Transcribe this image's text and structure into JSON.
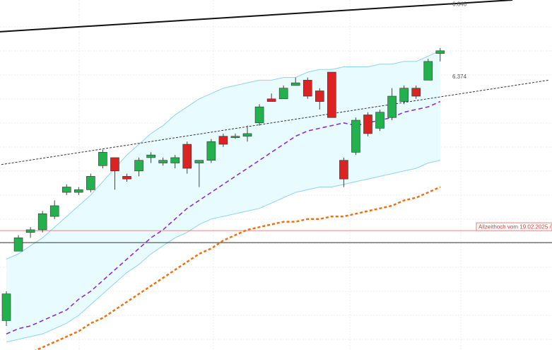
{
  "chart_data": {
    "type": "candlestick",
    "ylim": [
      5.35,
      6.66
    ],
    "grid": true,
    "colors": {
      "up": "#22b14c",
      "down": "#dd2222",
      "band_fill": "#e8fbff",
      "band_line": "#8fd3ef",
      "ma_short": "#8a2be2",
      "ma_long": "#f07010",
      "trend_upper": "#111111",
      "trend_lower": "#333333",
      "ath_line": "#e06060",
      "ref_line": "#333333"
    },
    "candles": [
      {
        "o": 5.46,
        "h": 5.57,
        "l": 5.44,
        "c": 5.56
      },
      {
        "o": 5.72,
        "h": 5.78,
        "l": 5.73,
        "c": 5.77
      },
      {
        "o": 5.79,
        "h": 5.81,
        "l": 5.77,
        "c": 5.8
      },
      {
        "o": 5.8,
        "h": 5.87,
        "l": 5.79,
        "c": 5.86
      },
      {
        "o": 5.85,
        "h": 5.91,
        "l": 5.84,
        "c": 5.89
      },
      {
        "o": 5.94,
        "h": 5.97,
        "l": 5.93,
        "c": 5.96
      },
      {
        "o": 5.94,
        "h": 5.96,
        "l": 5.93,
        "c": 5.95
      },
      {
        "o": 5.95,
        "h": 6.01,
        "l": 5.94,
        "c": 6.0
      },
      {
        "o": 6.04,
        "h": 6.1,
        "l": 6.03,
        "c": 6.09
      },
      {
        "o": 6.07,
        "h": 6.07,
        "l": 5.95,
        "c": 6.02
      },
      {
        "o": 6.0,
        "h": 6.01,
        "l": 5.98,
        "c": 5.99
      },
      {
        "o": 6.02,
        "h": 6.07,
        "l": 6.0,
        "c": 6.06
      },
      {
        "o": 6.07,
        "h": 6.09,
        "l": 6.05,
        "c": 6.08
      },
      {
        "o": 6.05,
        "h": 6.07,
        "l": 6.04,
        "c": 6.06
      },
      {
        "o": 6.05,
        "h": 6.08,
        "l": 6.03,
        "c": 6.07
      },
      {
        "o": 6.12,
        "h": 6.13,
        "l": 6.01,
        "c": 6.03
      },
      {
        "o": 6.05,
        "h": 6.06,
        "l": 5.96,
        "c": 6.06
      },
      {
        "o": 6.06,
        "h": 6.14,
        "l": 6.05,
        "c": 6.13
      },
      {
        "o": 6.15,
        "h": 6.16,
        "l": 6.11,
        "c": 6.12
      },
      {
        "o": 6.15,
        "h": 6.16,
        "l": 6.14,
        "c": 6.15
      },
      {
        "o": 6.15,
        "h": 6.19,
        "l": 6.13,
        "c": 6.16
      },
      {
        "o": 6.2,
        "h": 6.27,
        "l": 6.19,
        "c": 6.26
      },
      {
        "o": 6.29,
        "h": 6.31,
        "l": 6.28,
        "c": 6.28
      },
      {
        "o": 6.29,
        "h": 6.34,
        "l": 6.29,
        "c": 6.33
      },
      {
        "o": 6.34,
        "h": 6.37,
        "l": 6.34,
        "c": 6.35
      },
      {
        "o": 6.36,
        "h": 6.37,
        "l": 6.29,
        "c": 6.3
      },
      {
        "o": 6.32,
        "h": 6.33,
        "l": 6.25,
        "c": 6.28
      },
      {
        "o": 6.39,
        "h": 6.39,
        "l": 6.22,
        "c": 6.22
      },
      {
        "o": 6.06,
        "h": 6.07,
        "l": 5.96,
        "c": 5.99
      },
      {
        "o": 6.09,
        "h": 6.22,
        "l": 6.08,
        "c": 6.21
      },
      {
        "o": 6.23,
        "h": 6.24,
        "l": 6.15,
        "c": 6.16
      },
      {
        "o": 6.18,
        "h": 6.25,
        "l": 6.17,
        "c": 6.24
      },
      {
        "o": 6.22,
        "h": 6.33,
        "l": 6.21,
        "c": 6.3
      },
      {
        "o": 6.28,
        "h": 6.34,
        "l": 6.27,
        "c": 6.33
      },
      {
        "o": 6.33,
        "h": 6.34,
        "l": 6.29,
        "c": 6.3
      },
      {
        "o": 6.36,
        "h": 6.44,
        "l": 6.36,
        "c": 6.43
      },
      {
        "o": 6.46,
        "h": 6.48,
        "l": 6.43,
        "c": 6.47
      }
    ],
    "ma_short": [
      5.41,
      5.43,
      5.44,
      5.46,
      5.48,
      5.5,
      5.54,
      5.57,
      5.61,
      5.65,
      5.69,
      5.73,
      5.77,
      5.8,
      5.84,
      5.88,
      5.91,
      5.94,
      5.97,
      6.0,
      6.03,
      6.06,
      6.09,
      6.12,
      6.15,
      6.17,
      6.18,
      6.19,
      6.2,
      6.19,
      6.2,
      6.21,
      6.22,
      6.24,
      6.25,
      6.26,
      6.28
    ],
    "band_upper": [
      5.69,
      5.71,
      5.74,
      5.77,
      5.81,
      5.85,
      5.89,
      5.93,
      5.98,
      6.03,
      6.08,
      6.12,
      6.16,
      6.19,
      6.23,
      6.26,
      6.29,
      6.31,
      6.33,
      6.34,
      6.35,
      6.36,
      6.36,
      6.37,
      6.37,
      6.39,
      6.4,
      6.4,
      6.41,
      6.41,
      6.41,
      6.42,
      6.42,
      6.43,
      6.43,
      6.45,
      6.47
    ],
    "band_lower": [
      5.38,
      5.39,
      5.4,
      5.41,
      5.43,
      5.45,
      5.48,
      5.52,
      5.56,
      5.6,
      5.64,
      5.67,
      5.71,
      5.74,
      5.77,
      5.79,
      5.82,
      5.84,
      5.85,
      5.86,
      5.87,
      5.88,
      5.9,
      5.92,
      5.94,
      5.95,
      5.96,
      5.96,
      5.97,
      5.98,
      5.99,
      6.0,
      6.01,
      6.02,
      6.03,
      6.05,
      6.06
    ],
    "ma_long": [
      5.3,
      5.32,
      5.34,
      5.36,
      5.38,
      5.4,
      5.42,
      5.45,
      5.47,
      5.5,
      5.53,
      5.56,
      5.59,
      5.62,
      5.65,
      5.68,
      5.71,
      5.73,
      5.76,
      5.78,
      5.8,
      5.81,
      5.82,
      5.83,
      5.83,
      5.84,
      5.84,
      5.85,
      5.85,
      5.86,
      5.87,
      5.88,
      5.89,
      5.91,
      5.92,
      5.94,
      5.96
    ],
    "trend_upper": {
      "from": {
        "x": -1,
        "y": 6.54
      },
      "to": {
        "x": 42,
        "y": 6.66
      }
    },
    "trend_lower": {
      "from": {
        "x": -1,
        "y": 6.04
      },
      "to": {
        "x": 45,
        "y": 6.36
      }
    },
    "ath_level": 5.797,
    "ref_level": 5.752,
    "price_labels": [
      {
        "text": "6.646",
        "value": 6.646
      },
      {
        "text": "6.374",
        "value": 6.374
      }
    ],
    "ath_label": "Allzeithoch vom 19.02.2025 /"
  }
}
